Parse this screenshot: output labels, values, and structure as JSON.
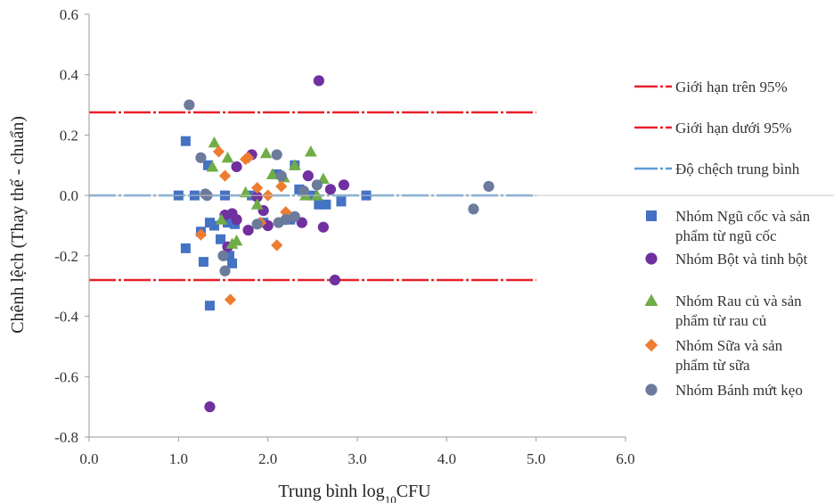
{
  "chart_data": {
    "type": "scatter",
    "xlabel": "Trung bình log",
    "xlabel_sub": "10",
    "xlabel_suffix": "CFU",
    "ylabel": "Chênh lệch (Thay thế - chuẩn)",
    "xlim": [
      0.0,
      6.0
    ],
    "ylim": [
      -0.8,
      0.6
    ],
    "x_ticks": [
      "0.0",
      "1.0",
      "2.0",
      "3.0",
      "4.0",
      "5.0",
      "6.0"
    ],
    "y_ticks": [
      "-0.8",
      "-0.6",
      "-0.4",
      "-0.2",
      "0.0",
      "0.2",
      "0.4",
      "0.6"
    ],
    "grid": false,
    "legend_position": "right",
    "reference_lines": [
      {
        "name": "Giới hạn trên 95%",
        "y": 0.275,
        "x_range": [
          0.0,
          5.0
        ],
        "color": "#e8202a",
        "style": "dash-dot"
      },
      {
        "name": "Giới hạn dưới 95%",
        "y": -0.28,
        "x_range": [
          0.0,
          5.0
        ],
        "color": "#e8202a",
        "style": "dash-dot"
      },
      {
        "name": "Độ chệch trung bình",
        "y": 0.0,
        "x_range": [
          0.0,
          5.0
        ],
        "color": "#5b9bd5",
        "style": "dash-dot"
      }
    ],
    "series": [
      {
        "name": "Nhóm Ngũ cốc và sản phẩm từ ngũ cốc",
        "marker": "square",
        "color": "#4472c4",
        "x": [
          1.0,
          1.08,
          1.18,
          1.25,
          1.28,
          1.33,
          1.35,
          1.35,
          1.4,
          1.47,
          1.52,
          1.57,
          1.6,
          1.63,
          1.82,
          1.95,
          2.1,
          2.25,
          2.3,
          2.35,
          2.5,
          2.57,
          2.65,
          2.82,
          3.1,
          1.08,
          1.55
        ],
        "y": [
          0.0,
          0.18,
          0.0,
          -0.12,
          -0.22,
          0.1,
          -0.09,
          -0.365,
          -0.1,
          -0.145,
          0.0,
          -0.2,
          -0.225,
          -0.095,
          0.0,
          -0.09,
          0.07,
          -0.08,
          0.1,
          0.02,
          0.0,
          -0.03,
          -0.03,
          -0.02,
          0.0,
          -0.175,
          -0.09
        ]
      },
      {
        "name": "Nhóm Bột và tinh bột",
        "marker": "circle",
        "color": "#7030a0",
        "x": [
          1.35,
          1.52,
          1.55,
          1.6,
          1.65,
          1.78,
          1.82,
          1.88,
          1.95,
          2.0,
          2.38,
          2.45,
          2.57,
          2.62,
          2.7,
          2.75,
          2.85,
          1.65
        ],
        "y": [
          -0.7,
          -0.065,
          -0.17,
          -0.06,
          0.095,
          -0.115,
          0.135,
          -0.005,
          -0.05,
          -0.1,
          -0.09,
          0.065,
          0.38,
          -0.105,
          0.02,
          -0.28,
          0.035,
          -0.08
        ]
      },
      {
        "name": "Nhóm Rau củ và sản phẩm từ rau củ",
        "marker": "triangle",
        "color": "#70ad47",
        "x": [
          1.38,
          1.4,
          1.48,
          1.55,
          1.65,
          1.75,
          1.88,
          1.98,
          2.05,
          2.18,
          2.3,
          2.42,
          2.48,
          2.55,
          2.62,
          1.6
        ],
        "y": [
          0.095,
          0.175,
          -0.08,
          0.125,
          -0.15,
          0.01,
          -0.03,
          0.14,
          0.07,
          0.06,
          0.1,
          0.0,
          0.145,
          0.0,
          0.055,
          -0.16
        ]
      },
      {
        "name": "Nhóm Sữa và sản phẩm từ sữa",
        "marker": "diamond",
        "color": "#ed7d31",
        "x": [
          1.25,
          1.45,
          1.52,
          1.58,
          1.75,
          1.78,
          1.88,
          1.92,
          2.0,
          2.1,
          2.15,
          2.2
        ],
        "y": [
          -0.13,
          0.145,
          0.065,
          -0.345,
          0.12,
          0.125,
          0.025,
          -0.09,
          0.0,
          -0.165,
          0.03,
          -0.055
        ]
      },
      {
        "name": "Nhóm Bánh mứt kẹo",
        "marker": "circle",
        "color": "#6b7b9c",
        "x": [
          1.12,
          1.25,
          1.32,
          1.5,
          1.52,
          1.88,
          2.1,
          2.15,
          2.2,
          2.3,
          2.4,
          2.55,
          4.3,
          4.47,
          2.12,
          1.3
        ],
        "y": [
          0.3,
          0.125,
          0.0,
          -0.2,
          -0.25,
          -0.095,
          0.135,
          0.065,
          -0.08,
          -0.07,
          0.015,
          0.035,
          -0.045,
          0.03,
          -0.09,
          0.005
        ]
      }
    ]
  },
  "legend": [
    {
      "label_lines": [
        "Giới hạn trên 95%"
      ],
      "symbol": "line",
      "color": "#e8202a"
    },
    {
      "label_lines": [
        "Giới hạn dưới 95%"
      ],
      "symbol": "line",
      "color": "#e8202a"
    },
    {
      "label_lines": [
        "Độ chệch trung bình"
      ],
      "symbol": "line",
      "color": "#5b9bd5"
    },
    {
      "label_lines": [
        "Nhóm Ngũ cốc và sản",
        "phẩm từ ngũ cốc"
      ],
      "symbol": "square",
      "color": "#4472c4"
    },
    {
      "label_lines": [
        "Nhóm Bột và tinh bột"
      ],
      "symbol": "circle",
      "color": "#7030a0"
    },
    {
      "label_lines": [
        "Nhóm Rau củ và sản",
        "phẩm từ rau củ"
      ],
      "symbol": "triangle",
      "color": "#70ad47"
    },
    {
      "label_lines": [
        "Nhóm Sữa và sản",
        "phẩm từ sữa"
      ],
      "symbol": "diamond",
      "color": "#ed7d31"
    },
    {
      "label_lines": [
        "Nhóm Bánh mứt kẹo"
      ],
      "symbol": "circle",
      "color": "#6b7b9c"
    }
  ]
}
